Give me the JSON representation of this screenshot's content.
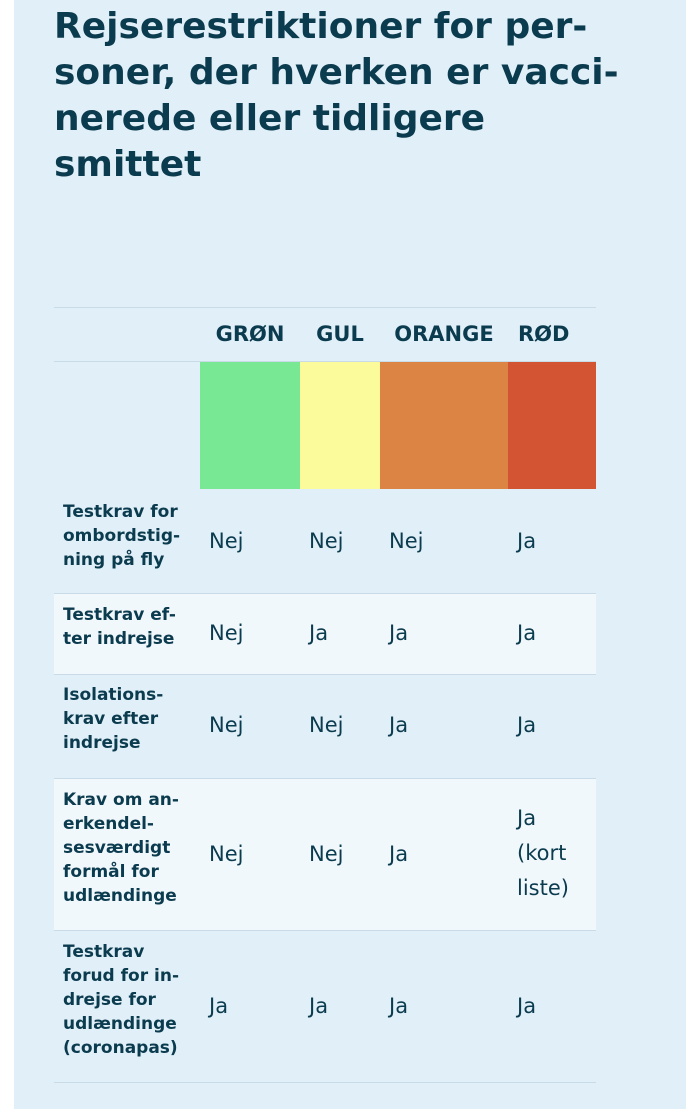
{
  "title_lines": [
    "Rejserestriktioner for per-",
    "soner, der hverken er vacci-",
    "nerede eller tidligere",
    "smittet"
  ],
  "columns": [
    {
      "label": "GRØN",
      "color": "#79e895"
    },
    {
      "label": "GUL",
      "color": "#fbfb9b"
    },
    {
      "label": "ORANGE",
      "color": "#dc8443"
    },
    {
      "label": "RØD",
      "color": "#d35433"
    }
  ],
  "rows": [
    {
      "label_lines": [
        "Testkrav for",
        "ombordstig-",
        "ning på fly"
      ],
      "values": [
        [
          "Nej"
        ],
        [
          "Nej"
        ],
        [
          "Nej"
        ],
        [
          "Ja"
        ]
      ]
    },
    {
      "label_lines": [
        "Testkrav ef-",
        "ter indrejse"
      ],
      "values": [
        [
          "Nej"
        ],
        [
          "Ja"
        ],
        [
          "Ja"
        ],
        [
          "Ja"
        ]
      ]
    },
    {
      "label_lines": [
        "Isolations-",
        "krav efter",
        "indrejse"
      ],
      "values": [
        [
          "Nej"
        ],
        [
          "Nej"
        ],
        [
          "Ja"
        ],
        [
          "Ja"
        ]
      ]
    },
    {
      "label_lines": [
        "Krav om an-",
        "erkendel-",
        "sesværdigt",
        "formål for",
        "udlændinge"
      ],
      "values": [
        [
          "Nej"
        ],
        [
          "Nej"
        ],
        [
          "Ja"
        ],
        [
          "Ja",
          "(kort",
          "liste)"
        ]
      ]
    },
    {
      "label_lines": [
        "Testkrav",
        "forud for in-",
        "drejse for",
        "udlændinge",
        "(coronapas)"
      ],
      "values": [
        [
          "Ja"
        ],
        [
          "Ja"
        ],
        [
          "Ja"
        ],
        [
          "Ja"
        ]
      ]
    }
  ]
}
